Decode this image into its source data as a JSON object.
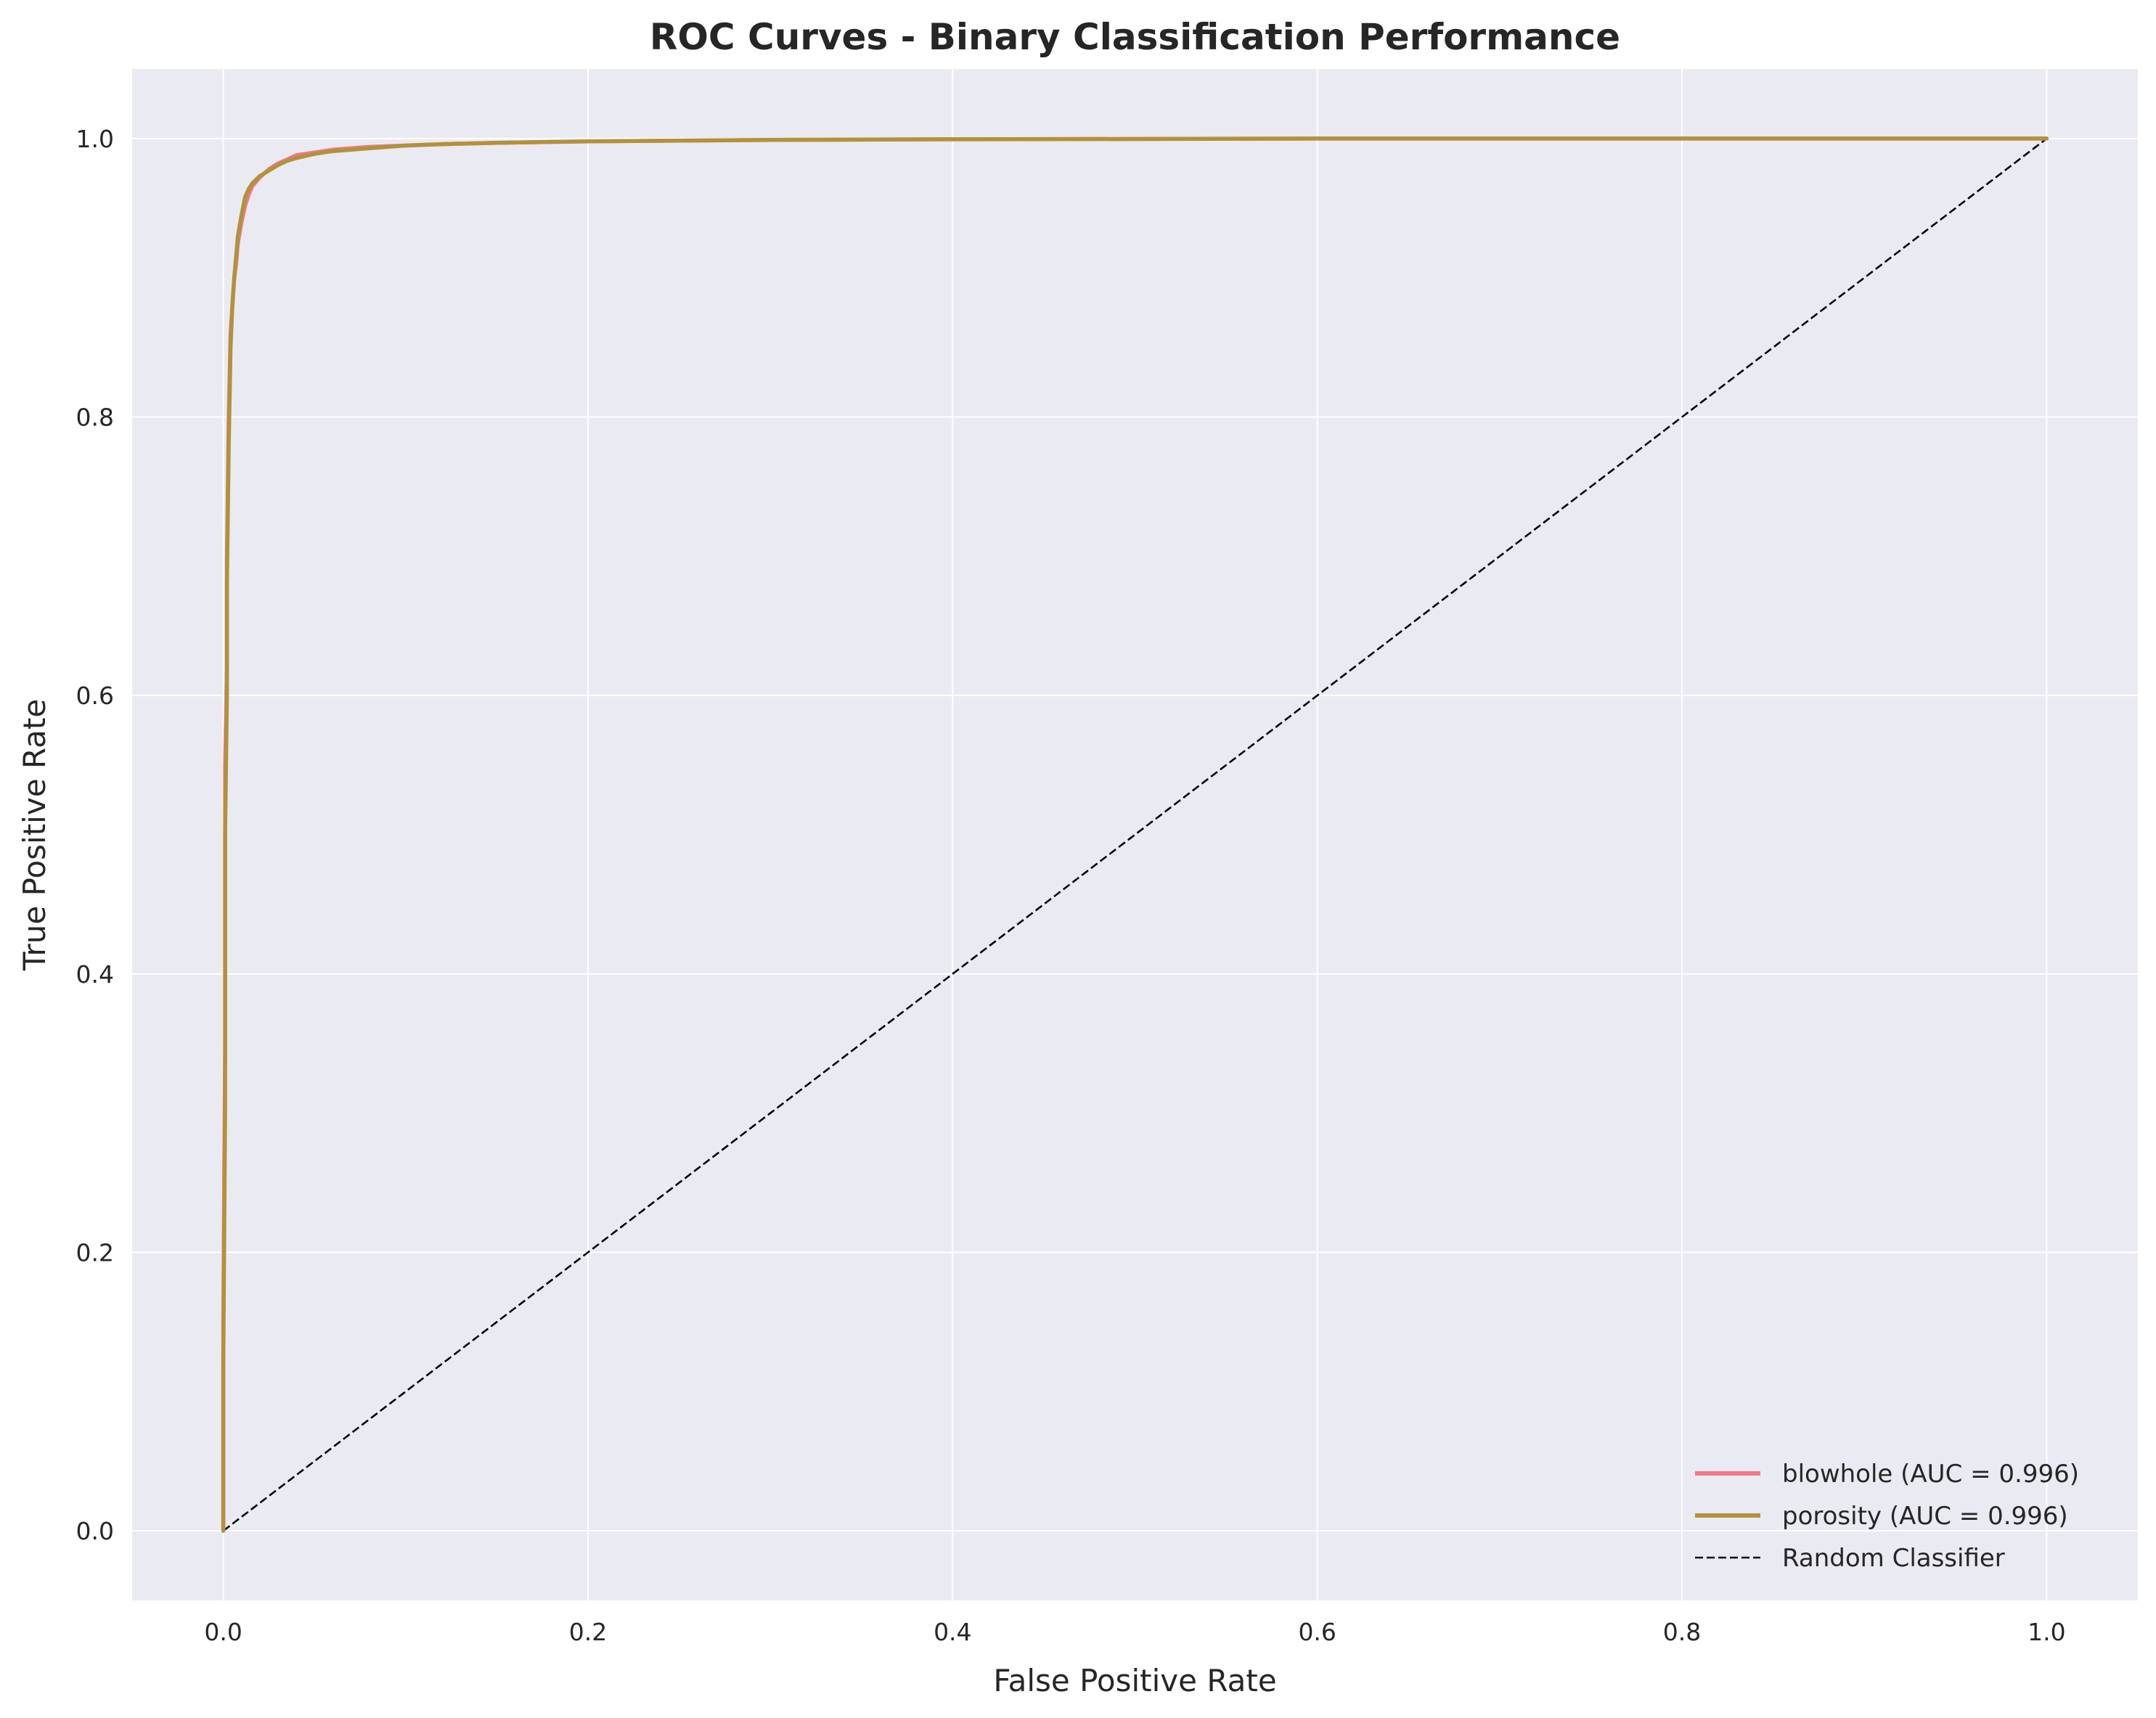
{
  "chart_data": {
    "type": "line",
    "title": "ROC Curves - Binary Classification Performance",
    "xlabel": "False Positive Rate",
    "ylabel": "True Positive Rate",
    "xlim": [
      -0.05,
      1.05
    ],
    "ylim": [
      -0.05,
      1.05
    ],
    "xticks": [
      0.0,
      0.2,
      0.4,
      0.6,
      0.8,
      1.0
    ],
    "yticks": [
      0.0,
      0.2,
      0.4,
      0.6,
      0.8,
      1.0
    ],
    "xtick_labels": [
      "0.0",
      "0.2",
      "0.4",
      "0.6",
      "0.8",
      "1.0"
    ],
    "ytick_labels": [
      "0.0",
      "0.2",
      "0.4",
      "0.6",
      "0.8",
      "1.0"
    ],
    "grid": true,
    "background_color": "#eaeaf2",
    "legend_position": "lower-right",
    "series": [
      {
        "name": "blowhole (AUC = 0.996)",
        "color": "#f0788a",
        "style": "solid",
        "x": [
          0.0,
          0.0,
          0.001,
          0.001,
          0.002,
          0.002,
          0.003,
          0.004,
          0.005,
          0.006,
          0.007,
          0.008,
          0.01,
          0.012,
          0.014,
          0.016,
          0.02,
          0.025,
          0.03,
          0.035,
          0.04,
          0.05,
          0.06,
          0.08,
          0.1,
          0.12,
          0.15,
          0.2,
          0.3,
          0.4,
          0.5,
          0.6,
          0.8,
          1.0
        ],
        "y": [
          0.0,
          0.15,
          0.35,
          0.55,
          0.62,
          0.7,
          0.8,
          0.86,
          0.88,
          0.9,
          0.91,
          0.925,
          0.94,
          0.952,
          0.96,
          0.966,
          0.972,
          0.978,
          0.982,
          0.985,
          0.988,
          0.99,
          0.992,
          0.994,
          0.995,
          0.996,
          0.997,
          0.998,
          0.999,
          0.9995,
          0.9997,
          1.0,
          1.0,
          1.0
        ]
      },
      {
        "name": "porosity (AUC = 0.996)",
        "color": "#b2923a",
        "style": "solid",
        "x": [
          0.0,
          0.0,
          0.001,
          0.001,
          0.002,
          0.002,
          0.003,
          0.004,
          0.005,
          0.006,
          0.007,
          0.008,
          0.01,
          0.012,
          0.014,
          0.016,
          0.02,
          0.025,
          0.03,
          0.035,
          0.04,
          0.05,
          0.06,
          0.08,
          0.1,
          0.12,
          0.15,
          0.2,
          0.3,
          0.4,
          0.5,
          0.6,
          0.8,
          1.0
        ],
        "y": [
          0.0,
          0.12,
          0.3,
          0.5,
          0.6,
          0.68,
          0.78,
          0.85,
          0.88,
          0.9,
          0.915,
          0.93,
          0.945,
          0.958,
          0.964,
          0.968,
          0.973,
          0.977,
          0.981,
          0.984,
          0.986,
          0.989,
          0.991,
          0.993,
          0.995,
          0.996,
          0.997,
          0.998,
          0.999,
          0.9995,
          0.9997,
          1.0,
          1.0,
          1.0
        ]
      },
      {
        "name": "Random Classifier",
        "color": "#000000",
        "style": "dashed",
        "x": [
          0.0,
          1.0
        ],
        "y": [
          0.0,
          1.0
        ]
      }
    ]
  }
}
